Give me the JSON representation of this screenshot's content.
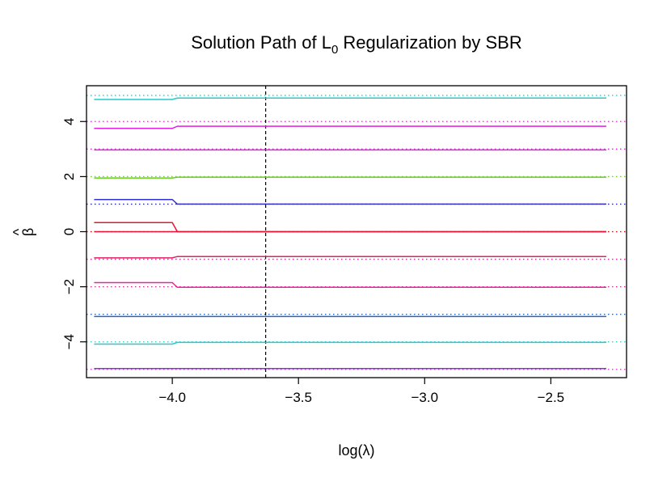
{
  "chart_data": {
    "type": "line",
    "title_main": "Solution Path of L",
    "title_sub": "0",
    "title_rest": " Regularization by SBR",
    "xlabel": "log(λ)",
    "ylabel_hat": "^",
    "ylabel": "β",
    "xlim": [
      -4.34,
      -2.2
    ],
    "ylim": [
      -5.3,
      5.3
    ],
    "x_ticks": [
      -4.0,
      -3.5,
      -3.0,
      -2.5
    ],
    "x_tick_labels": [
      "−4.0",
      "−3.5",
      "−3.0",
      "−2.5"
    ],
    "y_ticks": [
      -4,
      -2,
      0,
      2,
      4
    ],
    "y_tick_labels": [
      "−4",
      "−2",
      "0",
      "2",
      "4"
    ],
    "vline_x": -3.63,
    "true_values": [
      4.95,
      4.0,
      3.0,
      2.0,
      1.0,
      0.0,
      -1.0,
      -2.0,
      -3.0,
      -4.0,
      -5.0
    ],
    "true_value_colors": [
      "#22cccc",
      "#dd22dd",
      "#dd22dd",
      "#66cc22",
      "#2222cc",
      "#cc0000",
      "#dd2299",
      "#dd2299",
      "#2266cc",
      "#22cccc",
      "#dd22dd"
    ],
    "series": [
      {
        "color": "#22cccc",
        "x": [
          -4.31,
          -4.0,
          -3.98,
          -2.28
        ],
        "y": [
          4.8,
          4.8,
          4.85,
          4.85
        ]
      },
      {
        "color": "#dd22dd",
        "x": [
          -4.31,
          -4.0,
          -3.98,
          -2.28
        ],
        "y": [
          3.75,
          3.75,
          3.83,
          3.83
        ]
      },
      {
        "color": "#dd22dd",
        "x": [
          -4.31,
          -2.28
        ],
        "y": [
          2.97,
          2.97
        ]
      },
      {
        "color": "#66cc22",
        "x": [
          -4.31,
          -4.0,
          -3.98,
          -2.28
        ],
        "y": [
          1.95,
          1.95,
          1.98,
          1.98
        ]
      },
      {
        "color": "#3333cc",
        "x": [
          -4.31,
          -4.0,
          -3.98,
          -2.28
        ],
        "y": [
          1.17,
          1.17,
          1.0,
          1.0
        ]
      },
      {
        "color": "#ee1133",
        "x": [
          -4.31,
          -4.0,
          -3.98,
          -2.28
        ],
        "y": [
          0.33,
          0.33,
          0.0,
          0.0
        ]
      },
      {
        "color": "#ee1133",
        "x": [
          -4.31,
          -2.28
        ],
        "y": [
          0.0,
          0.0
        ]
      },
      {
        "color": "#dd2266",
        "x": [
          -4.31,
          -4.0,
          -3.98,
          -2.28
        ],
        "y": [
          -0.95,
          -0.95,
          -0.9,
          -0.9
        ]
      },
      {
        "color": "#ee2299",
        "x": [
          -4.31,
          -4.0,
          -3.98,
          -2.28
        ],
        "y": [
          -1.85,
          -1.85,
          -2.02,
          -2.02
        ]
      },
      {
        "color": "#2266cc",
        "x": [
          -4.31,
          -2.28
        ],
        "y": [
          -3.08,
          -3.08
        ]
      },
      {
        "color": "#22cccc",
        "x": [
          -4.31,
          -4.0,
          -3.98,
          -2.28
        ],
        "y": [
          -4.08,
          -4.08,
          -4.02,
          -4.02
        ]
      },
      {
        "color": "#8833dd",
        "x": [
          -4.31,
          -2.28
        ],
        "y": [
          -4.97,
          -4.97
        ]
      }
    ]
  }
}
